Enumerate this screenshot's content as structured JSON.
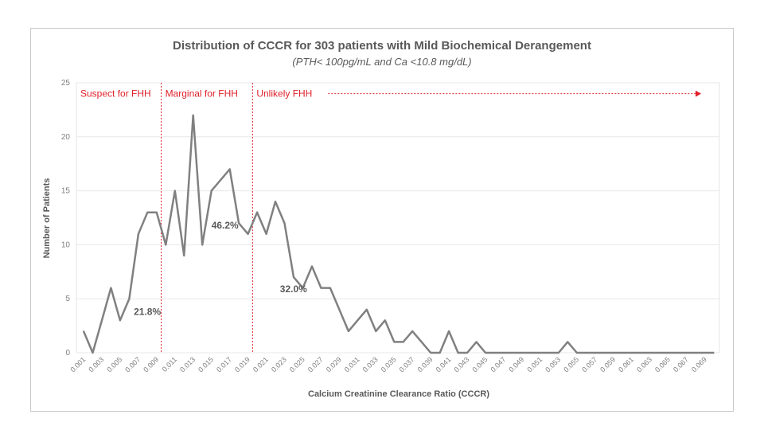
{
  "chart_data": {
    "type": "line",
    "title": "Distribution of CCCR for 303 patients with Mild Biochemical Derangement",
    "subtitle": "(PTH< 100pg/mL and Ca <10.8 mg/dL)",
    "xlabel": "Calcium Creatinine Clearance Ratio (CCCR)",
    "ylabel": "Number of Patients",
    "ylim": [
      0,
      25
    ],
    "yticks": [
      "0",
      "5",
      "10",
      "15",
      "20",
      "25"
    ],
    "x": [
      0.001,
      0.002,
      0.003,
      0.004,
      0.005,
      0.006,
      0.007,
      0.008,
      0.009,
      0.01,
      0.011,
      0.012,
      0.013,
      0.014,
      0.015,
      0.016,
      0.017,
      0.018,
      0.019,
      0.02,
      0.021,
      0.022,
      0.023,
      0.024,
      0.025,
      0.026,
      0.027,
      0.028,
      0.029,
      0.03,
      0.031,
      0.032,
      0.033,
      0.034,
      0.035,
      0.036,
      0.037,
      0.038,
      0.039,
      0.04,
      0.041,
      0.042,
      0.043,
      0.044,
      0.045,
      0.046,
      0.047,
      0.048,
      0.049,
      0.05,
      0.051,
      0.052,
      0.053,
      0.054,
      0.055,
      0.056,
      0.057,
      0.058,
      0.059,
      0.06,
      0.061,
      0.062,
      0.063,
      0.064,
      0.065,
      0.066,
      0.067,
      0.068,
      0.069,
      0.07
    ],
    "xtick_labels": [
      "0.001",
      "0.003",
      "0.005",
      "0.007",
      "0.009",
      "0.011",
      "0.013",
      "0.015",
      "0.017",
      "0.019",
      "0.021",
      "0.023",
      "0.025",
      "0.027",
      "0.029",
      "0.031",
      "0.033",
      "0.035",
      "0.037",
      "0.039",
      "0.041",
      "0.043",
      "0.045",
      "0.047",
      "0.049",
      "0.051",
      "0.053",
      "0.055",
      "0.057",
      "0.059",
      "0.061",
      "0.063",
      "0.065",
      "0.067",
      "0.069"
    ],
    "series": [
      {
        "name": "Number of Patients",
        "color": "#808080",
        "values": [
          2,
          0,
          3,
          6,
          3,
          5,
          11,
          13,
          13,
          10,
          15,
          9,
          22,
          10,
          15,
          16,
          17,
          12,
          11,
          13,
          11,
          14,
          12,
          7,
          6,
          8,
          6,
          6,
          4,
          2,
          3,
          4,
          2,
          3,
          1,
          1,
          2,
          1,
          0,
          0,
          2,
          0,
          0,
          1,
          0,
          0,
          0,
          0,
          0,
          0,
          0,
          0,
          0,
          1,
          0,
          0,
          0,
          0,
          0,
          0,
          0,
          0,
          0,
          0,
          0,
          0,
          0,
          0,
          0,
          0
        ]
      }
    ],
    "thresholds": [
      {
        "x": 0.0095,
        "color": "#e0212b",
        "style": "dotted"
      },
      {
        "x": 0.0195,
        "color": "#e0212b",
        "style": "dotted"
      }
    ],
    "regions": [
      {
        "label": "Suspect for FHH",
        "anchor_x": 0.001
      },
      {
        "label": "Marginal for FHH",
        "anchor_x": 0.0095
      },
      {
        "label": "Unlikely FHH",
        "anchor_x": 0.0195,
        "arrow_to_x": 0.07
      }
    ],
    "annotations": [
      {
        "text": "21.8%",
        "x": 0.0065,
        "y": 3.5
      },
      {
        "text": "46.2%",
        "x": 0.015,
        "y": 11.5
      },
      {
        "text": "32.0%",
        "x": 0.0225,
        "y": 5.6
      }
    ],
    "colors": {
      "line": "#808080",
      "threshold": "#e0212b",
      "plot_bg": "#ffffff",
      "grid": "#e8e8e8"
    }
  }
}
